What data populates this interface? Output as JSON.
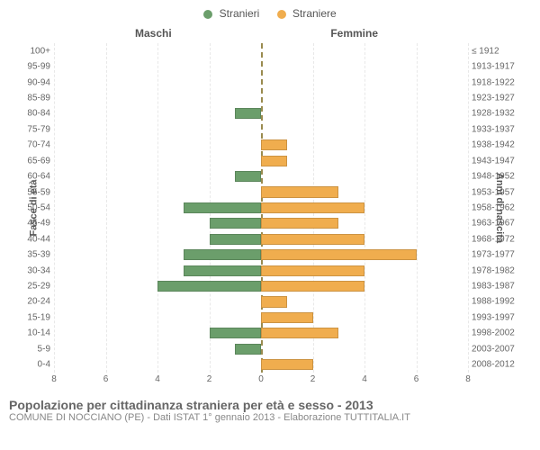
{
  "legend": {
    "male_label": "Stranieri",
    "female_label": "Straniere"
  },
  "column_titles": {
    "left": "Maschi",
    "right": "Femmine"
  },
  "axis_labels": {
    "left": "Fasce di età",
    "right": "Anni di nascita"
  },
  "footer": {
    "title": "Popolazione per cittadinanza straniera per età e sesso - 2013",
    "subtitle": "COMUNE DI NOCCIANO (PE) - Dati ISTAT 1° gennaio 2013 - Elaborazione TUTTITALIA.IT"
  },
  "colors": {
    "male": "#6b9e6b",
    "female": "#f0ad4e",
    "grid": "#d9d9d9",
    "center_line": "#9a8b4f",
    "background": "#ffffff",
    "text": "#555555"
  },
  "chart": {
    "type": "population-pyramid",
    "x_max": 8,
    "x_ticks": [
      8,
      6,
      4,
      2,
      0,
      2,
      4,
      6,
      8
    ],
    "rows": [
      {
        "age": "100+",
        "year": "≤ 1912",
        "male": 0,
        "female": 0
      },
      {
        "age": "95-99",
        "year": "1913-1917",
        "male": 0,
        "female": 0
      },
      {
        "age": "90-94",
        "year": "1918-1922",
        "male": 0,
        "female": 0
      },
      {
        "age": "85-89",
        "year": "1923-1927",
        "male": 0,
        "female": 0
      },
      {
        "age": "80-84",
        "year": "1928-1932",
        "male": 1,
        "female": 0
      },
      {
        "age": "75-79",
        "year": "1933-1937",
        "male": 0,
        "female": 0
      },
      {
        "age": "70-74",
        "year": "1938-1942",
        "male": 0,
        "female": 1
      },
      {
        "age": "65-69",
        "year": "1943-1947",
        "male": 0,
        "female": 1
      },
      {
        "age": "60-64",
        "year": "1948-1952",
        "male": 1,
        "female": 0
      },
      {
        "age": "55-59",
        "year": "1953-1957",
        "male": 0,
        "female": 3
      },
      {
        "age": "50-54",
        "year": "1958-1962",
        "male": 3,
        "female": 4
      },
      {
        "age": "45-49",
        "year": "1963-1967",
        "male": 2,
        "female": 3
      },
      {
        "age": "40-44",
        "year": "1968-1972",
        "male": 2,
        "female": 4
      },
      {
        "age": "35-39",
        "year": "1973-1977",
        "male": 3,
        "female": 6
      },
      {
        "age": "30-34",
        "year": "1978-1982",
        "male": 3,
        "female": 4
      },
      {
        "age": "25-29",
        "year": "1983-1987",
        "male": 4,
        "female": 4
      },
      {
        "age": "20-24",
        "year": "1988-1992",
        "male": 0,
        "female": 1
      },
      {
        "age": "15-19",
        "year": "1993-1997",
        "male": 0,
        "female": 2
      },
      {
        "age": "10-14",
        "year": "1998-2002",
        "male": 2,
        "female": 3
      },
      {
        "age": "5-9",
        "year": "2003-2007",
        "male": 1,
        "female": 0
      },
      {
        "age": "0-4",
        "year": "2008-2012",
        "male": 0,
        "female": 2
      }
    ]
  }
}
